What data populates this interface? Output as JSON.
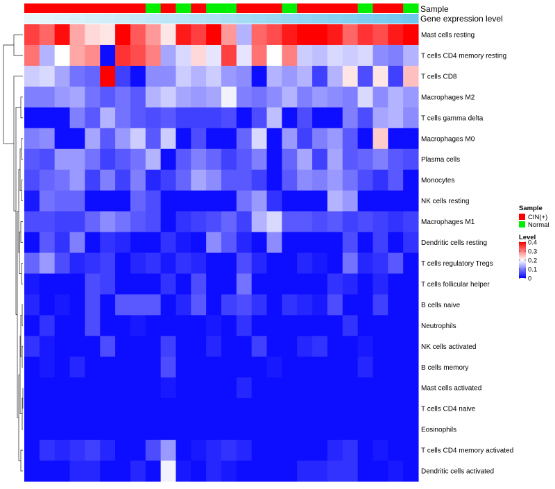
{
  "chart_data": {
    "type": "heatmap",
    "annotations": [
      {
        "name": "Sample",
        "kind": "categorical",
        "values": [
          "CIN(+)",
          "CIN(+)",
          "CIN(+)",
          "CIN(+)",
          "CIN(+)",
          "CIN(+)",
          "CIN(+)",
          "CIN(+)",
          "Normal",
          "CIN(+)",
          "Normal",
          "CIN(+)",
          "Normal",
          "Normal",
          "CIN(+)",
          "CIN(+)",
          "CIN(+)",
          "Normal",
          "CIN(+)",
          "CIN(+)",
          "CIN(+)",
          "CIN(+)",
          "Normal",
          "CIN(+)",
          "CIN(+)",
          "Normal"
        ]
      },
      {
        "name": "Gene expression level",
        "kind": "continuous",
        "values": [
          0.0,
          0.04,
          0.08,
          0.12,
          0.16,
          0.2,
          0.24,
          0.28,
          0.32,
          0.36,
          0.4,
          0.44,
          0.48,
          0.52,
          0.56,
          0.6,
          0.64,
          0.68,
          0.72,
          0.76,
          0.8,
          0.84,
          0.88,
          0.92,
          0.96,
          1.0
        ]
      }
    ],
    "rows": [
      "Mast cells resting",
      "T cells CD4 memory resting",
      "T cells CD8",
      "Macrophages M2",
      "T cells gamma delta",
      "Macrophages M0",
      "Plasma cells",
      "Monocytes",
      "NK cells resting",
      "Macrophages M1",
      "Dendritic cells resting",
      "T cells regulatory  Tregs",
      "T cells follicular helper",
      "B cells naive",
      "Neutrophils",
      "NK cells activated",
      "B cells memory",
      "Mast cells activated",
      "T cells CD4 naive",
      "Eosinophils",
      "T cells CD4 memory activated",
      "Dendritic cells activated"
    ],
    "n_columns": 26,
    "values": [
      [
        0.35,
        0.32,
        0.39,
        0.27,
        0.23,
        0.22,
        0.4,
        0.33,
        0.28,
        0.22,
        0.38,
        0.35,
        0.4,
        0.28,
        0.14,
        0.32,
        0.34,
        0.38,
        0.4,
        0.4,
        0.38,
        0.32,
        0.36,
        0.34,
        0.38,
        0.4
      ],
      [
        0.31,
        0.14,
        0.2,
        0.27,
        0.29,
        0.01,
        0.36,
        0.34,
        0.3,
        0.13,
        0.17,
        0.23,
        0.18,
        0.35,
        0.18,
        0.31,
        0.2,
        0.3,
        0.16,
        0.15,
        0.17,
        0.16,
        0.17,
        0.11,
        0.1,
        0.14
      ],
      [
        0.16,
        0.17,
        0.13,
        0.09,
        0.08,
        0.4,
        0.05,
        0.01,
        0.11,
        0.11,
        0.16,
        0.14,
        0.16,
        0.12,
        0.11,
        0.01,
        0.14,
        0.12,
        0.14,
        0.05,
        0.14,
        0.22,
        0.06,
        0.22,
        0.05,
        0.25
      ],
      [
        0.1,
        0.1,
        0.12,
        0.13,
        0.09,
        0.07,
        0.09,
        0.07,
        0.14,
        0.16,
        0.13,
        0.12,
        0.13,
        0.19,
        0.1,
        0.09,
        0.11,
        0.14,
        0.1,
        0.12,
        0.11,
        0.1,
        0.17,
        0.11,
        0.14,
        0.12
      ],
      [
        0.01,
        0.01,
        0.01,
        0.1,
        0.07,
        0.14,
        0.09,
        0.07,
        0.06,
        0.07,
        0.05,
        0.05,
        0.05,
        0.06,
        0.01,
        0.06,
        0.15,
        0.01,
        0.06,
        0.01,
        0.01,
        0.1,
        0.06,
        0.13,
        0.14,
        0.11
      ],
      [
        0.1,
        0.11,
        0.01,
        0.01,
        0.13,
        0.07,
        0.12,
        0.16,
        0.07,
        0.16,
        0.01,
        0.06,
        0.01,
        0.01,
        0.08,
        0.17,
        0.01,
        0.12,
        0.05,
        0.1,
        0.12,
        0.07,
        0.01,
        0.24,
        0.01,
        0.01
      ],
      [
        0.07,
        0.06,
        0.12,
        0.12,
        0.09,
        0.05,
        0.07,
        0.09,
        0.14,
        0.01,
        0.07,
        0.1,
        0.08,
        0.05,
        0.07,
        0.1,
        0.01,
        0.08,
        0.13,
        0.05,
        0.13,
        0.07,
        0.08,
        0.1,
        0.07,
        0.06
      ],
      [
        0.06,
        0.08,
        0.09,
        0.12,
        0.05,
        0.1,
        0.05,
        0.1,
        0.03,
        0.05,
        0.08,
        0.13,
        0.11,
        0.07,
        0.07,
        0.05,
        0.01,
        0.07,
        0.11,
        0.1,
        0.12,
        0.09,
        0.06,
        0.04,
        0.07,
        0.01
      ],
      [
        0.02,
        0.09,
        0.08,
        0.08,
        0.01,
        0.01,
        0.01,
        0.08,
        0.06,
        0.01,
        0.01,
        0.01,
        0.01,
        0.01,
        0.09,
        0.12,
        0.04,
        0.01,
        0.01,
        0.01,
        0.14,
        0.12,
        0.01,
        0.01,
        0.01,
        0.01
      ],
      [
        0.06,
        0.06,
        0.05,
        0.05,
        0.08,
        0.11,
        0.09,
        0.07,
        0.06,
        0.01,
        0.04,
        0.05,
        0.06,
        0.08,
        0.05,
        0.14,
        0.17,
        0.07,
        0.07,
        0.06,
        0.07,
        0.05,
        0.06,
        0.05,
        0.04,
        0.05
      ],
      [
        0.01,
        0.07,
        0.04,
        0.1,
        0.01,
        0.04,
        0.03,
        0.01,
        0.01,
        0.04,
        0.02,
        0.01,
        0.11,
        0.07,
        0.03,
        0.01,
        0.11,
        0.01,
        0.01,
        0.01,
        0.01,
        0.06,
        0.01,
        0.05,
        0.01,
        0.04
      ],
      [
        0.08,
        0.12,
        0.06,
        0.03,
        0.04,
        0.05,
        0.01,
        0.03,
        0.04,
        0.02,
        0.04,
        0.03,
        0.01,
        0.01,
        0.06,
        0.03,
        0.01,
        0.01,
        0.03,
        0.02,
        0.01,
        0.09,
        0.03,
        0.04,
        0.07,
        0.01
      ],
      [
        0.02,
        0.01,
        0.01,
        0.01,
        0.06,
        0.05,
        0.01,
        0.01,
        0.01,
        0.04,
        0.01,
        0.06,
        0.01,
        0.01,
        0.09,
        0.01,
        0.01,
        0.01,
        0.01,
        0.01,
        0.04,
        0.03,
        0.01,
        0.03,
        0.01,
        0.01
      ],
      [
        0.03,
        0.01,
        0.02,
        0.01,
        0.06,
        0.01,
        0.07,
        0.07,
        0.07,
        0.01,
        0.03,
        0.07,
        0.01,
        0.05,
        0.06,
        0.04,
        0.01,
        0.04,
        0.03,
        0.02,
        0.06,
        0.01,
        0.01,
        0.05,
        0.01,
        0.01
      ],
      [
        0.01,
        0.04,
        0.01,
        0.01,
        0.06,
        0.01,
        0.01,
        0.02,
        0.01,
        0.01,
        0.01,
        0.01,
        0.02,
        0.01,
        0.04,
        0.01,
        0.01,
        0.01,
        0.01,
        0.01,
        0.01,
        0.04,
        0.01,
        0.01,
        0.01,
        0.01
      ],
      [
        0.04,
        0.02,
        0.01,
        0.01,
        0.01,
        0.06,
        0.01,
        0.01,
        0.01,
        0.05,
        0.01,
        0.01,
        0.03,
        0.01,
        0.01,
        0.05,
        0.01,
        0.01,
        0.03,
        0.04,
        0.01,
        0.01,
        0.02,
        0.01,
        0.01,
        0.01
      ],
      [
        0.01,
        0.02,
        0.01,
        0.03,
        0.01,
        0.01,
        0.01,
        0.01,
        0.01,
        0.06,
        0.01,
        0.01,
        0.01,
        0.01,
        0.01,
        0.01,
        0.02,
        0.01,
        0.01,
        0.01,
        0.01,
        0.01,
        0.03,
        0.01,
        0.01,
        0.01
      ],
      [
        0.01,
        0.01,
        0.01,
        0.01,
        0.01,
        0.01,
        0.01,
        0.01,
        0.01,
        0.02,
        0.01,
        0.01,
        0.01,
        0.01,
        0.03,
        0.01,
        0.01,
        0.01,
        0.01,
        0.01,
        0.01,
        0.01,
        0.01,
        0.01,
        0.01,
        0.01
      ],
      [
        0.01,
        0.01,
        0.01,
        0.01,
        0.01,
        0.01,
        0.01,
        0.01,
        0.01,
        0.01,
        0.01,
        0.01,
        0.01,
        0.01,
        0.01,
        0.01,
        0.01,
        0.01,
        0.01,
        0.01,
        0.01,
        0.01,
        0.01,
        0.01,
        0.01,
        0.01
      ],
      [
        0.01,
        0.01,
        0.01,
        0.01,
        0.01,
        0.01,
        0.01,
        0.01,
        0.01,
        0.01,
        0.01,
        0.01,
        0.01,
        0.01,
        0.01,
        0.01,
        0.01,
        0.01,
        0.01,
        0.01,
        0.01,
        0.01,
        0.01,
        0.01,
        0.01,
        0.01
      ],
      [
        0.01,
        0.04,
        0.03,
        0.04,
        0.05,
        0.03,
        0.01,
        0.01,
        0.06,
        0.12,
        0.01,
        0.02,
        0.03,
        0.04,
        0.03,
        0.01,
        0.01,
        0.01,
        0.01,
        0.01,
        0.03,
        0.04,
        0.01,
        0.02,
        0.01,
        0.01
      ],
      [
        0.01,
        0.01,
        0.01,
        0.03,
        0.03,
        0.01,
        0.01,
        0.03,
        0.01,
        0.19,
        0.02,
        0.01,
        0.03,
        0.02,
        0.01,
        0.01,
        0.01,
        0.01,
        0.03,
        0.03,
        0.04,
        0.04,
        0.01,
        0.01,
        0.02,
        0.01
      ]
    ],
    "legend": {
      "sample_title": "Sample",
      "sample_entries": [
        {
          "label": "CIN(+)",
          "color": "#ff0000"
        },
        {
          "label": "Normal",
          "color": "#00ee00"
        }
      ],
      "level_title": "Level",
      "level_ticks": [
        0.4,
        0.3,
        0.2,
        0.1,
        0
      ],
      "level_range": [
        0,
        0.4
      ],
      "placement": "right"
    },
    "colors": {
      "low": "#0000ff",
      "mid": "#ffffff",
      "high": "#ff0000",
      "expr_low": "#e8f7fc",
      "expr_high": "#6fc7ef"
    },
    "dendrogram": "rows",
    "title": "",
    "xlabel": "",
    "ylabel": ""
  }
}
